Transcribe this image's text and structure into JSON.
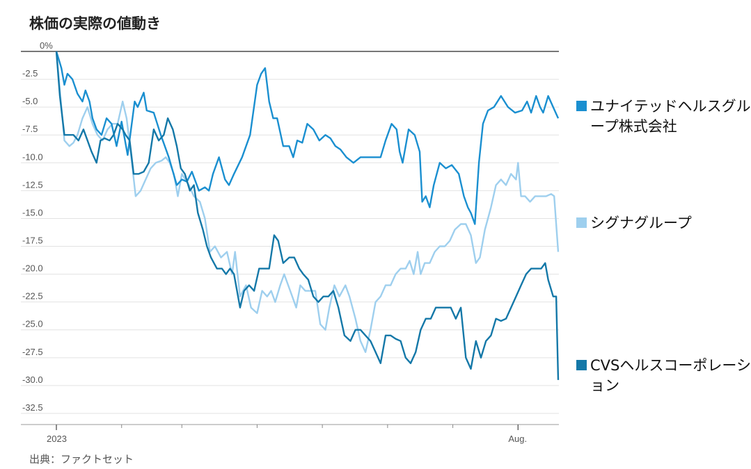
{
  "title": "株価の実際の値動き",
  "source": "出典：ファクトセット",
  "chart_data": {
    "type": "line",
    "title": "株価の実際の値動き",
    "xlabel": "",
    "ylabel": "",
    "ylim": [
      -33.5,
      0
    ],
    "y_ticks": [
      "0%",
      "-2.5",
      "-5.0",
      "-7.5",
      "-10.0",
      "-12.5",
      "-15.0",
      "-17.5",
      "-20.0",
      "-22.5",
      "-25.0",
      "-27.5",
      "-30.0",
      "-32.5"
    ],
    "y_tick_values": [
      0,
      -2.5,
      -5,
      -7.5,
      -10,
      -12.5,
      -15,
      -17.5,
      -20,
      -22.5,
      -25,
      -27.5,
      -30,
      -32.5
    ],
    "x_range": [
      0,
      100
    ],
    "x_tick_labels": [
      {
        "x": 0,
        "label": "2023"
      },
      {
        "x": 92,
        "label": "Aug."
      }
    ],
    "x_minor_ticks": [
      13,
      25,
      40,
      53,
      66,
      79
    ],
    "grid": true,
    "legend_placement": "right",
    "series": [
      {
        "name": "ユナイテッドヘルスグループ株式会社",
        "color": "#1a8fd0",
        "points": [
          [
            0,
            0
          ],
          [
            1,
            -1.5
          ],
          [
            1.6,
            -3
          ],
          [
            2.2,
            -2
          ],
          [
            3.2,
            -2.5
          ],
          [
            4.2,
            -3.8
          ],
          [
            5.2,
            -4.5
          ],
          [
            5.8,
            -3.5
          ],
          [
            6.6,
            -4.5
          ],
          [
            7.2,
            -6
          ],
          [
            8,
            -7
          ],
          [
            9,
            -7.5
          ],
          [
            10,
            -6
          ],
          [
            11,
            -6.5
          ],
          [
            12,
            -8.5
          ],
          [
            13,
            -6.3
          ],
          [
            14.2,
            -9.3
          ],
          [
            15.6,
            -4.5
          ],
          [
            16.2,
            -5
          ],
          [
            17.4,
            -3.7
          ],
          [
            18,
            -5.3
          ],
          [
            19.4,
            -5.5
          ],
          [
            20.8,
            -7.5
          ],
          [
            22.4,
            -9.5
          ],
          [
            24,
            -12
          ],
          [
            25,
            -11.5
          ],
          [
            26,
            -11.7
          ],
          [
            27,
            -10.8
          ],
          [
            28.4,
            -12.5
          ],
          [
            29.6,
            -12.2
          ],
          [
            30.4,
            -12.5
          ],
          [
            31.2,
            -11
          ],
          [
            32.4,
            -9.5
          ],
          [
            33.6,
            -11.5
          ],
          [
            34.4,
            -12
          ],
          [
            35.4,
            -11
          ],
          [
            37,
            -9.5
          ],
          [
            38.6,
            -7.5
          ],
          [
            40,
            -3
          ],
          [
            40.8,
            -2
          ],
          [
            41.6,
            -1.5
          ],
          [
            42.4,
            -4.5
          ],
          [
            43.2,
            -6
          ],
          [
            44,
            -6
          ],
          [
            45.2,
            -8.5
          ],
          [
            46.4,
            -8.5
          ],
          [
            47.2,
            -9.5
          ],
          [
            48,
            -8
          ],
          [
            49,
            -8.2
          ],
          [
            50,
            -6.5
          ],
          [
            51.2,
            -7
          ],
          [
            52.4,
            -8
          ],
          [
            53.6,
            -7.5
          ],
          [
            54.6,
            -7.8
          ],
          [
            55.6,
            -8.5
          ],
          [
            56.6,
            -8.8
          ],
          [
            57.8,
            -9.5
          ],
          [
            59.2,
            -10
          ],
          [
            60.6,
            -9.5
          ],
          [
            61.8,
            -9.5
          ],
          [
            63.2,
            -9.5
          ],
          [
            64.6,
            -9.5
          ],
          [
            65.6,
            -8
          ],
          [
            66.8,
            -6.5
          ],
          [
            67.8,
            -7
          ],
          [
            68.4,
            -9
          ],
          [
            69,
            -10
          ],
          [
            70.2,
            -7
          ],
          [
            71.4,
            -7.5
          ],
          [
            72.4,
            -9
          ],
          [
            72.9,
            -13.5
          ],
          [
            73.6,
            -13
          ],
          [
            74.4,
            -14
          ],
          [
            75.2,
            -12
          ],
          [
            76.4,
            -10
          ],
          [
            77.6,
            -10.5
          ],
          [
            78.8,
            -10.2
          ],
          [
            80.2,
            -11
          ],
          [
            81.2,
            -13
          ],
          [
            82,
            -14
          ],
          [
            82.6,
            -14.5
          ],
          [
            83.4,
            -15.5
          ],
          [
            84.2,
            -10
          ],
          [
            85,
            -6.5
          ],
          [
            86,
            -5.3
          ],
          [
            87.2,
            -5
          ],
          [
            88.6,
            -4
          ],
          [
            90,
            -5
          ],
          [
            91.4,
            -5.5
          ],
          [
            92.8,
            -5.3
          ],
          [
            93.8,
            -4.5
          ],
          [
            94.6,
            -5.5
          ],
          [
            95.6,
            -4
          ],
          [
            96.4,
            -5
          ],
          [
            97,
            -5.5
          ],
          [
            98,
            -4
          ],
          [
            99.2,
            -5.2
          ],
          [
            100,
            -6
          ]
        ]
      },
      {
        "name": "シグナグループ",
        "color": "#9ecfee",
        "points": [
          [
            0,
            0
          ],
          [
            0.8,
            -4
          ],
          [
            1.6,
            -8
          ],
          [
            2.6,
            -8.5
          ],
          [
            3.4,
            -8.2
          ],
          [
            4.2,
            -7.5
          ],
          [
            5.2,
            -6
          ],
          [
            6.2,
            -5
          ],
          [
            7.2,
            -6.5
          ],
          [
            8.2,
            -7.5
          ],
          [
            9.2,
            -8
          ],
          [
            10.2,
            -7
          ],
          [
            11.2,
            -6.5
          ],
          [
            12.2,
            -6.5
          ],
          [
            13.2,
            -4.5
          ],
          [
            14,
            -6
          ],
          [
            14.8,
            -9
          ],
          [
            15.8,
            -13
          ],
          [
            16.8,
            -12.5
          ],
          [
            17.8,
            -11.5
          ],
          [
            18.8,
            -10.5
          ],
          [
            19.8,
            -10
          ],
          [
            21,
            -9.8
          ],
          [
            21.8,
            -9.5
          ],
          [
            22.6,
            -10
          ],
          [
            23.4,
            -11
          ],
          [
            24.2,
            -13
          ],
          [
            25,
            -11
          ],
          [
            26.4,
            -12
          ],
          [
            27.4,
            -13
          ],
          [
            28.6,
            -13.5
          ],
          [
            29.6,
            -15
          ],
          [
            30.6,
            -18
          ],
          [
            31.6,
            -17.5
          ],
          [
            32.8,
            -18.5
          ],
          [
            34,
            -18
          ],
          [
            35,
            -20
          ],
          [
            35.6,
            -18
          ],
          [
            36.6,
            -22
          ],
          [
            37.8,
            -21
          ],
          [
            38.8,
            -23
          ],
          [
            40,
            -23.5
          ],
          [
            41,
            -21.5
          ],
          [
            42,
            -22
          ],
          [
            42.8,
            -21.5
          ],
          [
            43.6,
            -22.5
          ],
          [
            44.6,
            -21
          ],
          [
            45.4,
            -20
          ],
          [
            46.2,
            -21
          ],
          [
            47,
            -22
          ],
          [
            47.8,
            -23
          ],
          [
            48.6,
            -21
          ],
          [
            49.6,
            -21.5
          ],
          [
            50.4,
            -21.5
          ],
          [
            51.6,
            -21.5
          ],
          [
            52.6,
            -24.5
          ],
          [
            53.6,
            -25
          ],
          [
            54.4,
            -23
          ],
          [
            55.4,
            -21
          ],
          [
            56.4,
            -22
          ],
          [
            57.6,
            -21
          ],
          [
            58.4,
            -22
          ],
          [
            59.6,
            -24
          ],
          [
            60.6,
            -26
          ],
          [
            61.6,
            -27
          ],
          [
            62.6,
            -25
          ],
          [
            63.6,
            -22.5
          ],
          [
            64.6,
            -22
          ],
          [
            65.6,
            -21
          ],
          [
            66.6,
            -21
          ],
          [
            67.6,
            -20
          ],
          [
            68.6,
            -19.5
          ],
          [
            69.6,
            -19.5
          ],
          [
            70.4,
            -18.8
          ],
          [
            71.2,
            -20
          ],
          [
            72,
            -18
          ],
          [
            72.6,
            -20
          ],
          [
            73.4,
            -19
          ],
          [
            74.4,
            -19
          ],
          [
            75.4,
            -18
          ],
          [
            76.4,
            -17.5
          ],
          [
            77.4,
            -17.5
          ],
          [
            78.4,
            -17
          ],
          [
            79.4,
            -16
          ],
          [
            80.6,
            -15.5
          ],
          [
            81.6,
            -15.5
          ],
          [
            82.6,
            -16.5
          ],
          [
            83.6,
            -19
          ],
          [
            84.4,
            -18.5
          ],
          [
            85.4,
            -16
          ],
          [
            86.6,
            -14
          ],
          [
            87.6,
            -12
          ],
          [
            88.6,
            -11.5
          ],
          [
            89.6,
            -12
          ],
          [
            90.6,
            -11
          ],
          [
            91.6,
            -11.5
          ],
          [
            92,
            -10
          ],
          [
            92.6,
            -13
          ],
          [
            93.4,
            -13
          ],
          [
            94.4,
            -13.5
          ],
          [
            95.4,
            -13
          ],
          [
            96.6,
            -13
          ],
          [
            97.6,
            -13
          ],
          [
            98.6,
            -12.8
          ],
          [
            99.2,
            -13
          ],
          [
            100,
            -18
          ]
        ]
      },
      {
        "name": "CVSヘルスコーポレーション",
        "color": "#1478a8",
        "points": [
          [
            0,
            0
          ],
          [
            0.7,
            -4
          ],
          [
            1.6,
            -7.5
          ],
          [
            2.6,
            -7.5
          ],
          [
            3.4,
            -7.5
          ],
          [
            4.4,
            -8
          ],
          [
            5.4,
            -7
          ],
          [
            6.2,
            -8
          ],
          [
            7,
            -9
          ],
          [
            8,
            -10
          ],
          [
            8.8,
            -8
          ],
          [
            9.6,
            -7.8
          ],
          [
            10.6,
            -8
          ],
          [
            11.4,
            -7.5
          ],
          [
            12.2,
            -6.5
          ],
          [
            13.2,
            -7
          ],
          [
            13.8,
            -7.5
          ],
          [
            14.6,
            -8
          ],
          [
            15.4,
            -11
          ],
          [
            16.4,
            -11
          ],
          [
            17.4,
            -10.8
          ],
          [
            18.4,
            -10
          ],
          [
            19.4,
            -7
          ],
          [
            20.4,
            -8
          ],
          [
            21.4,
            -7.5
          ],
          [
            22.2,
            -6
          ],
          [
            23.2,
            -7
          ],
          [
            24,
            -8.5
          ],
          [
            24.8,
            -10.5
          ],
          [
            25.6,
            -11
          ],
          [
            26.6,
            -12.5
          ],
          [
            27.4,
            -12
          ],
          [
            28.2,
            -14.5
          ],
          [
            29.2,
            -16
          ],
          [
            30,
            -17.5
          ],
          [
            30.8,
            -18.5
          ],
          [
            32,
            -19.5
          ],
          [
            33,
            -19.5
          ],
          [
            33.8,
            -20
          ],
          [
            34.6,
            -19.5
          ],
          [
            35.4,
            -20
          ],
          [
            36.6,
            -23
          ],
          [
            37.4,
            -21.5
          ],
          [
            38.4,
            -21
          ],
          [
            39.4,
            -21.5
          ],
          [
            40.4,
            -19.5
          ],
          [
            41.4,
            -19.5
          ],
          [
            42.4,
            -19.5
          ],
          [
            43.4,
            -16.5
          ],
          [
            44.2,
            -17
          ],
          [
            45.2,
            -19
          ],
          [
            46.4,
            -18.5
          ],
          [
            47.4,
            -18.5
          ],
          [
            48.4,
            -19.5
          ],
          [
            49.2,
            -20
          ],
          [
            50.2,
            -20.5
          ],
          [
            51.2,
            -22
          ],
          [
            52.2,
            -22.5
          ],
          [
            53.2,
            -22
          ],
          [
            54.2,
            -22
          ],
          [
            55.2,
            -21.5
          ],
          [
            56.2,
            -23
          ],
          [
            57.4,
            -25.5
          ],
          [
            58.6,
            -26
          ],
          [
            59.6,
            -25
          ],
          [
            60.6,
            -25
          ],
          [
            61.6,
            -25.5
          ],
          [
            62.6,
            -26
          ],
          [
            63.6,
            -27
          ],
          [
            64.6,
            -28
          ],
          [
            65.6,
            -25.5
          ],
          [
            66.6,
            -25.5
          ],
          [
            67.6,
            -25.8
          ],
          [
            68.6,
            -26
          ],
          [
            69.6,
            -27.5
          ],
          [
            70.6,
            -28
          ],
          [
            71.6,
            -27
          ],
          [
            72.6,
            -25
          ],
          [
            73.6,
            -24
          ],
          [
            74.6,
            -24
          ],
          [
            75.6,
            -23
          ],
          [
            76.6,
            -23
          ],
          [
            77.6,
            -23
          ],
          [
            78.6,
            -23
          ],
          [
            79.6,
            -24
          ],
          [
            80.6,
            -23
          ],
          [
            81.6,
            -27.5
          ],
          [
            82.6,
            -28.5
          ],
          [
            83.6,
            -26
          ],
          [
            84.6,
            -27.5
          ],
          [
            85.6,
            -26
          ],
          [
            86.6,
            -25.5
          ],
          [
            87.6,
            -24
          ],
          [
            88.6,
            -24.2
          ],
          [
            89.6,
            -24
          ],
          [
            90.6,
            -23
          ],
          [
            91.6,
            -22
          ],
          [
            92.6,
            -21
          ],
          [
            93.6,
            -20
          ],
          [
            94.6,
            -19.5
          ],
          [
            95.6,
            -19.5
          ],
          [
            96.6,
            -19.5
          ],
          [
            97.4,
            -19
          ],
          [
            98,
            -20.5
          ],
          [
            99,
            -22
          ],
          [
            99.6,
            -22
          ],
          [
            100,
            -29.5
          ]
        ]
      }
    ]
  }
}
